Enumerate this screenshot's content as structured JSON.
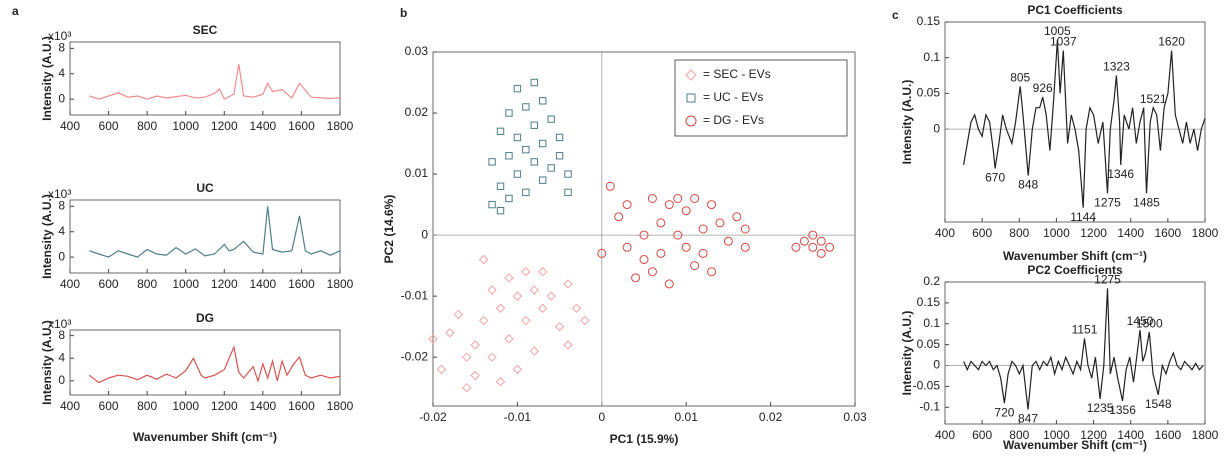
{
  "chart_data": [
    {
      "type": "line",
      "panel": "a",
      "title": "SEC",
      "ylabel": "Intensity (A.U.)",
      "y_multiplier": "x10³",
      "color": "#f08c8e",
      "x": [
        500,
        550,
        600,
        650,
        700,
        750,
        800,
        850,
        900,
        950,
        1000,
        1050,
        1100,
        1150,
        1175,
        1200,
        1250,
        1275,
        1300,
        1350,
        1400,
        1425,
        1450,
        1500,
        1550,
        1590,
        1650,
        1700,
        1750,
        1800
      ],
      "values": [
        0.5,
        0,
        0.5,
        1,
        0.3,
        0.5,
        0,
        0.5,
        0.2,
        0.4,
        0.6,
        0.2,
        0.3,
        0.9,
        1.6,
        0,
        0.8,
        5.5,
        0.5,
        0.3,
        0.8,
        2.5,
        1.2,
        1.5,
        0.2,
        2.5,
        0.3,
        0.2,
        0.1,
        0.2
      ],
      "xlim": [
        400,
        1800
      ],
      "xticks": [
        400,
        600,
        800,
        1000,
        1200,
        1400,
        1600,
        1800
      ],
      "ylim": [
        -2.5,
        9
      ],
      "yticks": [
        0,
        4,
        8
      ]
    },
    {
      "type": "line",
      "panel": null,
      "title": "UC",
      "ylabel": "Intensity (A.U.)",
      "y_multiplier": "x10³",
      "color": "#4e7f89",
      "x": [
        500,
        550,
        600,
        650,
        700,
        750,
        800,
        850,
        900,
        950,
        1000,
        1050,
        1100,
        1150,
        1200,
        1225,
        1250,
        1300,
        1350,
        1400,
        1425,
        1450,
        1500,
        1550,
        1590,
        1620,
        1650,
        1700,
        1750,
        1800
      ],
      "values": [
        1,
        0.5,
        0,
        1,
        0.5,
        0,
        1.2,
        0.5,
        0.3,
        1.5,
        0.5,
        1.3,
        0.2,
        0.5,
        2,
        1,
        1.2,
        2.5,
        0.8,
        0.5,
        8,
        1.2,
        0.8,
        1,
        6.5,
        1,
        0.5,
        1,
        0.3,
        1
      ],
      "xlim": [
        400,
        1800
      ],
      "xticks": [
        400,
        600,
        800,
        1000,
        1200,
        1400,
        1600,
        1800
      ],
      "ylim": [
        -2.5,
        9
      ],
      "yticks": [
        0,
        4,
        8
      ]
    },
    {
      "type": "line",
      "panel": null,
      "title": "DG",
      "ylabel": "Intensity (A.U.)",
      "y_multiplier": "x10³",
      "xlabel": "Wavenumber Shift (cm⁻¹)",
      "color": "#d9534f",
      "x": [
        500,
        550,
        600,
        650,
        700,
        750,
        800,
        850,
        900,
        950,
        1000,
        1040,
        1080,
        1100,
        1150,
        1200,
        1250,
        1275,
        1300,
        1350,
        1375,
        1400,
        1425,
        1450,
        1475,
        1500,
        1525,
        1560,
        1590,
        1620,
        1650,
        1700,
        1750,
        1800
      ],
      "values": [
        1,
        -0.3,
        0.5,
        1,
        0.8,
        0.2,
        1,
        0.3,
        1.2,
        0.5,
        1.8,
        4,
        1,
        0.5,
        1,
        2,
        6,
        1.5,
        0.5,
        2.5,
        0,
        3,
        0.5,
        3.5,
        0,
        3.5,
        1,
        3,
        4.2,
        1,
        0.5,
        1,
        0.5,
        0.8
      ],
      "xlim": [
        400,
        1800
      ],
      "xticks": [
        400,
        600,
        800,
        1000,
        1200,
        1400,
        1600,
        1800
      ],
      "ylim": [
        -2.5,
        9
      ],
      "yticks": [
        0,
        4,
        8
      ]
    },
    {
      "type": "scatter",
      "panel": "b",
      "xlabel": "PC1 (15.9%)",
      "ylabel": "PC2 (14.6%)",
      "xlim": [
        -0.02,
        0.03
      ],
      "xticks": [
        -0.02,
        -0.01,
        0,
        0.01,
        0.02,
        0.03
      ],
      "ylim": [
        -0.028,
        0.03
      ],
      "yticks": [
        -0.02,
        -0.01,
        0,
        0.01,
        0.02,
        0.03
      ],
      "zero_lines": true,
      "legend": "upper right",
      "series": [
        {
          "name": "= SEC - EVs",
          "color": "#f4a3a6",
          "marker": "diamond",
          "x": [
            -0.02,
            -0.019,
            -0.018,
            -0.017,
            -0.016,
            -0.016,
            -0.015,
            -0.015,
            -0.014,
            -0.014,
            -0.013,
            -0.013,
            -0.012,
            -0.012,
            -0.011,
            -0.011,
            -0.01,
            -0.01,
            -0.009,
            -0.009,
            -0.008,
            -0.008,
            -0.007,
            -0.007,
            -0.006,
            -0.005,
            -0.004,
            -0.004,
            -0.003,
            -0.002
          ],
          "values": [
            -0.017,
            -0.022,
            -0.016,
            -0.013,
            -0.02,
            -0.025,
            -0.018,
            -0.023,
            -0.004,
            -0.014,
            -0.009,
            -0.02,
            -0.012,
            -0.024,
            -0.007,
            -0.017,
            -0.01,
            -0.022,
            -0.006,
            -0.014,
            -0.009,
            -0.019,
            -0.006,
            -0.012,
            -0.01,
            -0.015,
            -0.008,
            -0.018,
            -0.012,
            -0.014
          ]
        },
        {
          "name": "= UC - EVs",
          "color": "#4e7f89",
          "marker": "square",
          "x": [
            -0.013,
            -0.013,
            -0.012,
            -0.012,
            -0.011,
            -0.011,
            -0.011,
            -0.01,
            -0.01,
            -0.01,
            -0.009,
            -0.009,
            -0.009,
            -0.008,
            -0.008,
            -0.008,
            -0.007,
            -0.007,
            -0.007,
            -0.006,
            -0.006,
            -0.005,
            -0.005,
            -0.004,
            -0.004,
            -0.012
          ],
          "values": [
            0.005,
            0.012,
            0.008,
            0.017,
            0.006,
            0.013,
            0.02,
            0.01,
            0.016,
            0.024,
            0.007,
            0.014,
            0.021,
            0.012,
            0.018,
            0.025,
            0.009,
            0.015,
            0.022,
            0.011,
            0.019,
            0.013,
            0.016,
            0.01,
            0.007,
            0.004
          ]
        },
        {
          "name": "= DG - EVs",
          "color": "#d9473f",
          "marker": "circle",
          "x": [
            0,
            0.001,
            0.002,
            0.003,
            0.003,
            0.004,
            0.005,
            0.005,
            0.006,
            0.006,
            0.007,
            0.007,
            0.008,
            0.008,
            0.009,
            0.009,
            0.01,
            0.01,
            0.011,
            0.011,
            0.012,
            0.012,
            0.013,
            0.013,
            0.014,
            0.015,
            0.016,
            0.017,
            0.017,
            0.023,
            0.024,
            0.025,
            0.025,
            0.026,
            0.026,
            0.027
          ],
          "values": [
            -0.003,
            0.008,
            0.003,
            -0.002,
            0.005,
            -0.007,
            0,
            -0.004,
            0.006,
            -0.006,
            0.002,
            -0.003,
            0.005,
            -0.008,
            0,
            0.006,
            -0.002,
            0.004,
            -0.005,
            0.006,
            0.001,
            -0.003,
            0.005,
            -0.006,
            0.002,
            -0.001,
            0.003,
            -0.002,
            0.001,
            -0.002,
            -0.001,
            0,
            -0.002,
            -0.001,
            -0.003,
            -0.002
          ]
        }
      ]
    },
    {
      "type": "line",
      "panel": "c",
      "title": "PC1 Coefficients",
      "ylabel": "Intensity (A.U.)",
      "xlabel": "Wavenumber Shift (cm⁻¹)",
      "color": "#222222",
      "zero_line": true,
      "x": [
        500,
        520,
        540,
        560,
        580,
        600,
        620,
        640,
        660,
        670,
        690,
        710,
        730,
        760,
        780,
        805,
        820,
        848,
        870,
        890,
        910,
        926,
        945,
        965,
        985,
        1005,
        1020,
        1037,
        1060,
        1080,
        1100,
        1120,
        1144,
        1160,
        1180,
        1200,
        1225,
        1250,
        1275,
        1290,
        1310,
        1323,
        1340,
        1346,
        1365,
        1390,
        1410,
        1430,
        1450,
        1470,
        1485,
        1505,
        1521,
        1540,
        1560,
        1580,
        1600,
        1620,
        1640,
        1660,
        1680,
        1700,
        1720,
        1740,
        1760,
        1780,
        1800
      ],
      "values": [
        -0.05,
        -0.02,
        0.01,
        0.02,
        0,
        -0.01,
        0.02,
        0.01,
        -0.03,
        -0.055,
        -0.02,
        0.02,
        0,
        -0.02,
        0.01,
        0.06,
        0.02,
        -0.065,
        0,
        0.03,
        0.03,
        0.045,
        0.02,
        -0.03,
        0.04,
        0.125,
        0.05,
        0.11,
        -0.02,
        0.02,
        0,
        -0.03,
        -0.11,
        0,
        0.03,
        0.02,
        -0.02,
        0.01,
        -0.09,
        0,
        0.04,
        0.075,
        0.01,
        -0.05,
        0.02,
        0,
        0.03,
        -0.02,
        0.01,
        0.03,
        -0.09,
        0.01,
        0.03,
        0.02,
        -0.03,
        0.03,
        0.05,
        0.11,
        0.02,
        0,
        -0.02,
        0.01,
        -0.02,
        0,
        -0.03,
        0,
        0.015
      ],
      "annotations": [
        {
          "x": 670,
          "y": -0.055
        },
        {
          "x": 805,
          "y": 0.06
        },
        {
          "x": 848,
          "y": -0.065
        },
        {
          "x": 926,
          "y": 0.045
        },
        {
          "x": 1005,
          "y": 0.125
        },
        {
          "x": 1037,
          "y": 0.11
        },
        {
          "x": 1144,
          "y": -0.11
        },
        {
          "x": 1275,
          "y": -0.09
        },
        {
          "x": 1323,
          "y": 0.075
        },
        {
          "x": 1346,
          "y": -0.05
        },
        {
          "x": 1485,
          "y": -0.09
        },
        {
          "x": 1521,
          "y": 0.03
        },
        {
          "x": 1620,
          "y": 0.11
        }
      ],
      "xlim": [
        400,
        1800
      ],
      "xticks": [
        400,
        600,
        800,
        1000,
        1200,
        1400,
        1600,
        1800
      ],
      "ylim": [
        -0.13,
        0.15
      ],
      "yticks": [
        0,
        0.05,
        0.1,
        0.15
      ]
    },
    {
      "type": "line",
      "panel": null,
      "title": "PC2 Coefficients",
      "ylabel": "Intensity (A.U.)",
      "xlabel": "Wavenumber Shift (cm⁻¹)",
      "color": "#222222",
      "zero_line": true,
      "x": [
        500,
        520,
        540,
        560,
        580,
        600,
        620,
        640,
        660,
        680,
        700,
        720,
        740,
        760,
        780,
        800,
        820,
        847,
        870,
        890,
        910,
        930,
        950,
        970,
        990,
        1010,
        1030,
        1050,
        1070,
        1090,
        1110,
        1130,
        1151,
        1170,
        1190,
        1210,
        1235,
        1255,
        1275,
        1290,
        1310,
        1330,
        1356,
        1375,
        1395,
        1415,
        1435,
        1450,
        1465,
        1480,
        1500,
        1520,
        1548,
        1570,
        1590,
        1610,
        1630,
        1650,
        1670,
        1690,
        1710,
        1730,
        1750,
        1770,
        1790
      ],
      "values": [
        0.01,
        -0.01,
        0.01,
        0,
        -0.01,
        0.01,
        0,
        0.01,
        -0.01,
        0,
        -0.03,
        -0.09,
        -0.02,
        0.01,
        0,
        -0.02,
        0,
        -0.105,
        0,
        0.01,
        -0.01,
        0.01,
        0,
        0.02,
        -0.02,
        0.01,
        -0.01,
        0.02,
        0,
        -0.02,
        0.01,
        -0.01,
        0.065,
        0,
        -0.03,
        0.02,
        -0.08,
        0,
        0.185,
        -0.02,
        0.02,
        -0.03,
        -0.085,
        -0.01,
        0.02,
        -0.04,
        0.03,
        0.085,
        0.01,
        0.03,
        0.08,
        -0.02,
        -0.07,
        0,
        -0.02,
        0.01,
        0.03,
        0,
        -0.01,
        0.01,
        0,
        -0.01,
        0.005,
        -0.01,
        0
      ],
      "annotations": [
        {
          "x": 720,
          "y": -0.09
        },
        {
          "x": 847,
          "y": -0.105
        },
        {
          "x": 1151,
          "y": 0.065
        },
        {
          "x": 1235,
          "y": -0.08
        },
        {
          "x": 1275,
          "y": 0.185
        },
        {
          "x": 1356,
          "y": -0.085
        },
        {
          "x": 1450,
          "y": 0.085
        },
        {
          "x": 1500,
          "y": 0.08
        },
        {
          "x": 1548,
          "y": -0.07
        }
      ],
      "xlim": [
        400,
        1800
      ],
      "xticks": [
        400,
        600,
        800,
        1000,
        1200,
        1400,
        1600,
        1800
      ],
      "ylim": [
        -0.14,
        0.2
      ],
      "yticks": [
        -0.1,
        -0.05,
        0,
        0.05,
        0.1,
        0.15,
        0.2
      ]
    }
  ]
}
